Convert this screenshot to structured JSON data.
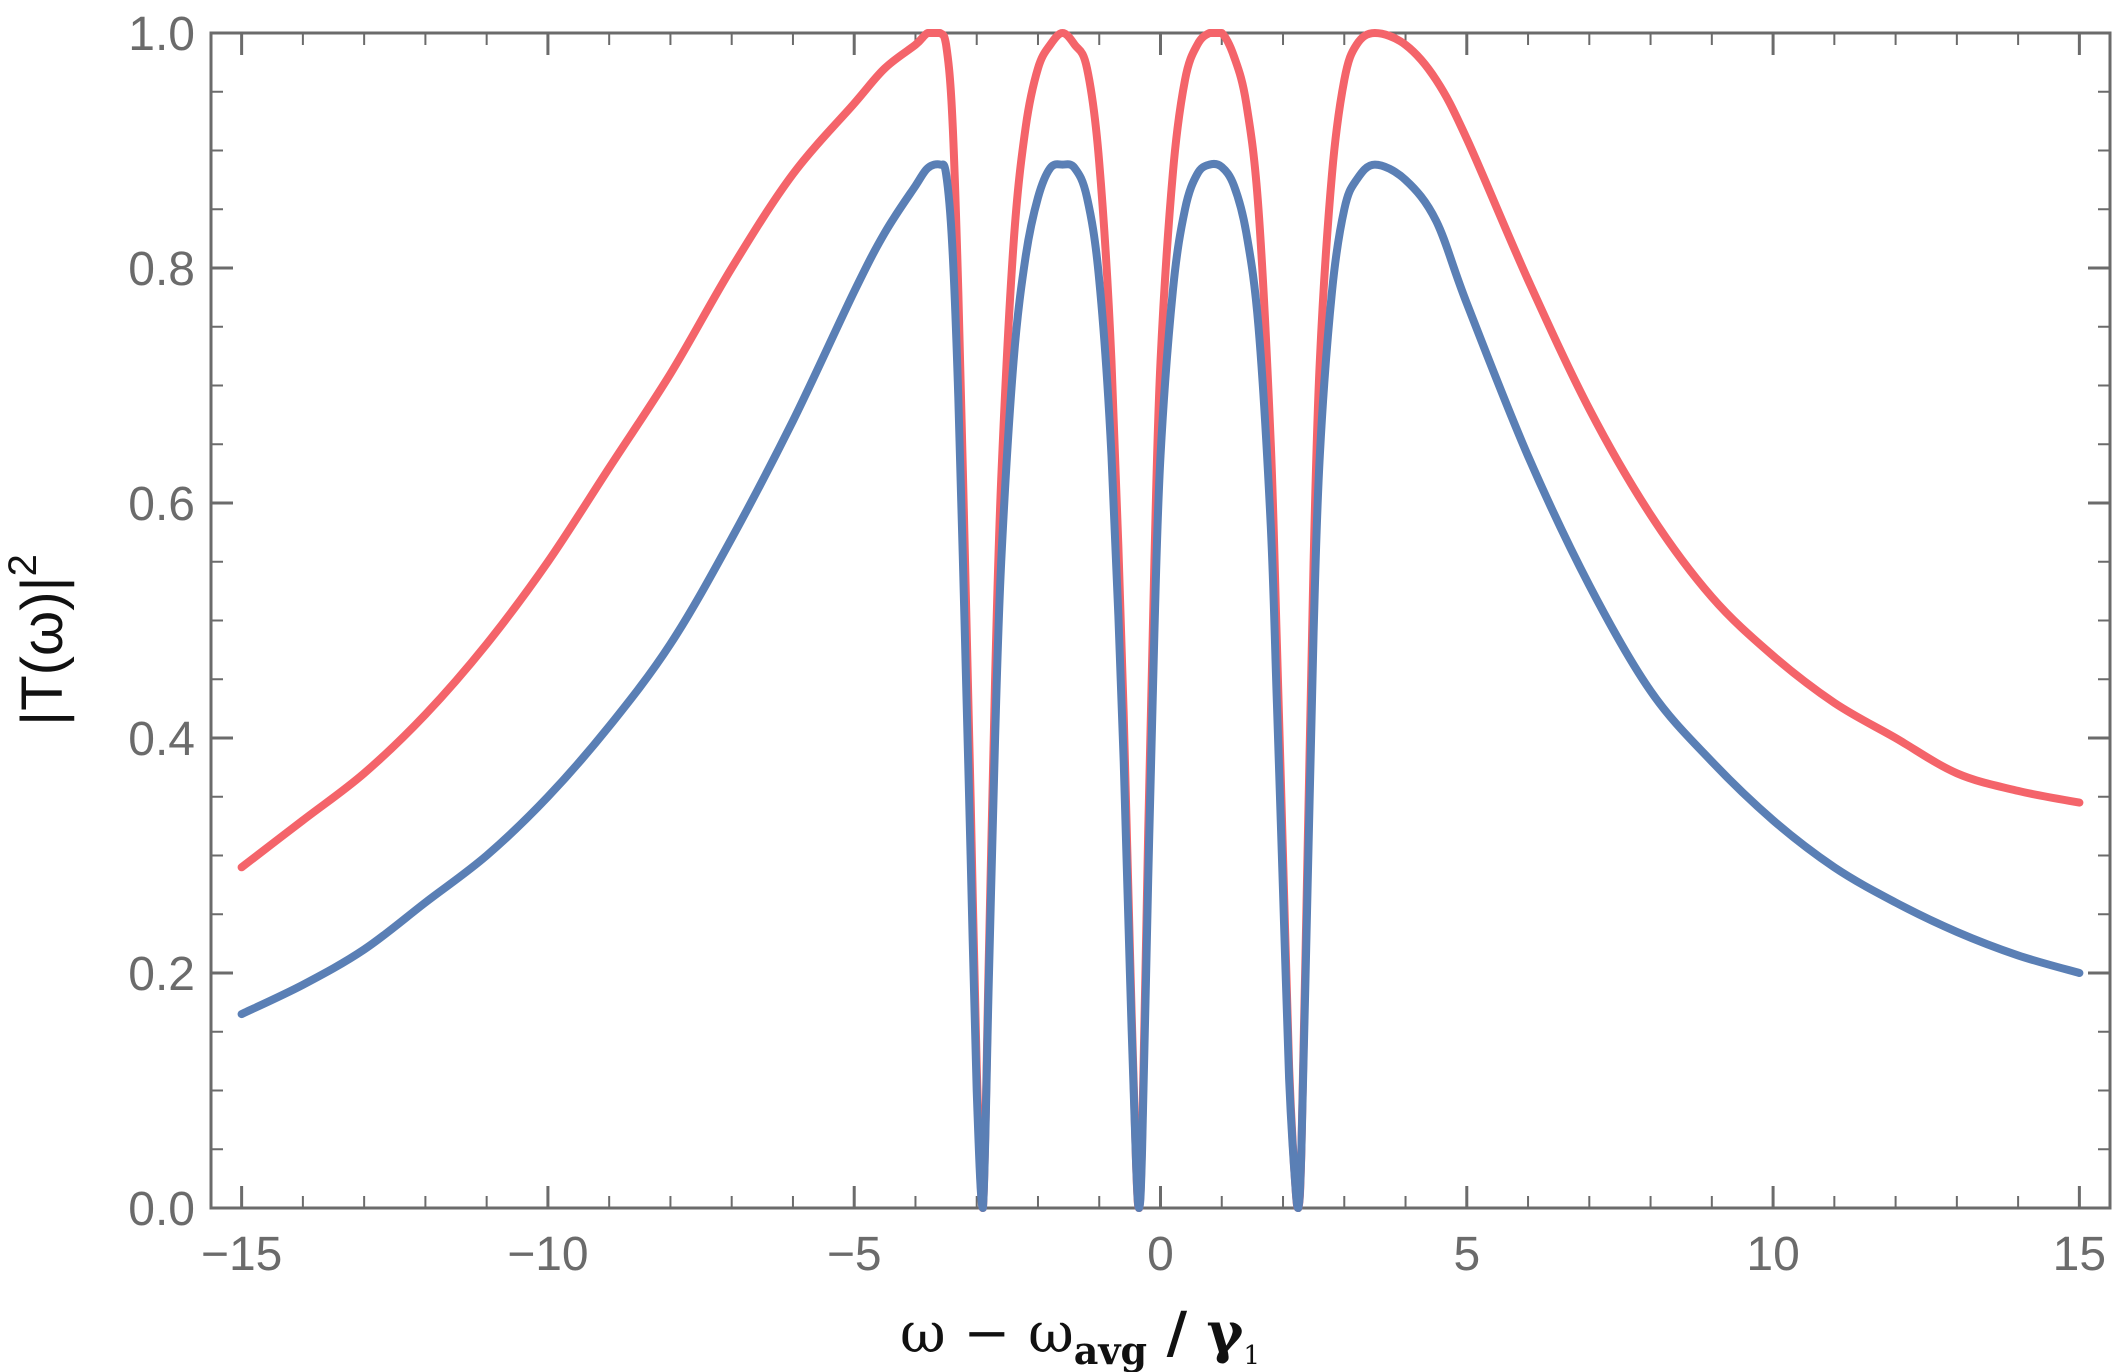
{
  "chart_data": {
    "type": "line",
    "xlabel": {
      "main": "ω − ω",
      "sub": "avg",
      "slash": " / γ",
      "slash_sub": "1"
    },
    "ylabel": {
      "main": "|T(ω)|",
      "sup": "2"
    },
    "xlim": [
      -15.5,
      15.5
    ],
    "ylim": [
      0,
      1
    ],
    "x_ticks": [
      {
        "value": -15,
        "label": "−15"
      },
      {
        "value": -10,
        "label": "−10"
      },
      {
        "value": -5,
        "label": "−5"
      },
      {
        "value": 0,
        "label": "0"
      },
      {
        "value": 5,
        "label": "5"
      },
      {
        "value": 10,
        "label": "10"
      },
      {
        "value": 15,
        "label": "15"
      }
    ],
    "y_ticks": [
      {
        "value": 0.0,
        "label": "0.0"
      },
      {
        "value": 0.2,
        "label": "0.2"
      },
      {
        "value": 0.4,
        "label": "0.4"
      },
      {
        "value": 0.6,
        "label": "0.6"
      },
      {
        "value": 0.8,
        "label": "0.8"
      },
      {
        "value": 1.0,
        "label": "1.0"
      }
    ],
    "grid": false,
    "series": [
      {
        "color": "#f4646a",
        "x": [
          -15,
          -14,
          -13,
          -12,
          -11,
          -10,
          -9,
          -8,
          -7,
          -6,
          -5,
          -4.5,
          -4,
          -3.8,
          -3.6,
          -3.5,
          -3.4,
          -3.3,
          -3.2,
          -3.1,
          -3.0,
          -2.9,
          -2.8,
          -2.7,
          -2.6,
          -2.4,
          -2.2,
          -2.0,
          -1.8,
          -1.6,
          -1.4,
          -1.2,
          -1.0,
          -0.8,
          -0.6,
          -0.5,
          -0.4,
          -0.35,
          -0.3,
          -0.2,
          -0.1,
          0.0,
          0.2,
          0.4,
          0.6,
          0.8,
          1.0,
          1.2,
          1.4,
          1.6,
          1.8,
          1.9,
          2.0,
          2.1,
          2.2,
          2.25,
          2.3,
          2.4,
          2.5,
          2.6,
          2.8,
          3.0,
          3.2,
          3.5,
          4.0,
          4.5,
          5,
          6,
          7,
          8,
          9,
          10,
          11,
          12,
          13,
          14,
          15
        ],
        "y": [
          0.29,
          0.33,
          0.37,
          0.42,
          0.48,
          0.55,
          0.63,
          0.71,
          0.8,
          0.88,
          0.94,
          0.97,
          0.99,
          1.0,
          1.0,
          0.99,
          0.93,
          0.78,
          0.57,
          0.35,
          0.12,
          0.0,
          0.22,
          0.45,
          0.62,
          0.82,
          0.92,
          0.97,
          0.99,
          1.0,
          0.99,
          0.97,
          0.89,
          0.72,
          0.42,
          0.22,
          0.04,
          0.0,
          0.06,
          0.32,
          0.55,
          0.72,
          0.88,
          0.96,
          0.99,
          1.0,
          1.0,
          0.98,
          0.94,
          0.85,
          0.65,
          0.48,
          0.3,
          0.12,
          0.02,
          0.0,
          0.05,
          0.3,
          0.55,
          0.72,
          0.88,
          0.96,
          0.99,
          1.0,
          0.99,
          0.96,
          0.91,
          0.79,
          0.68,
          0.59,
          0.52,
          0.47,
          0.43,
          0.4,
          0.37,
          0.355,
          0.345
        ]
      },
      {
        "color": "#5a7fb5",
        "x": [
          -15,
          -14,
          -13,
          -12,
          -11,
          -10,
          -9,
          -8,
          -7,
          -6,
          -5,
          -4.5,
          -4,
          -3.8,
          -3.6,
          -3.5,
          -3.4,
          -3.3,
          -3.2,
          -3.1,
          -3.0,
          -2.9,
          -2.8,
          -2.7,
          -2.6,
          -2.4,
          -2.2,
          -2.0,
          -1.8,
          -1.6,
          -1.4,
          -1.2,
          -1.0,
          -0.8,
          -0.6,
          -0.5,
          -0.4,
          -0.35,
          -0.3,
          -0.2,
          -0.1,
          0.0,
          0.2,
          0.4,
          0.6,
          0.8,
          1.0,
          1.2,
          1.4,
          1.6,
          1.8,
          1.9,
          2.0,
          2.1,
          2.2,
          2.25,
          2.3,
          2.4,
          2.5,
          2.6,
          2.8,
          3.0,
          3.2,
          3.5,
          4.0,
          4.5,
          5,
          6,
          7,
          8,
          9,
          10,
          11,
          12,
          13,
          14,
          15
        ],
        "y": [
          0.165,
          0.19,
          0.22,
          0.26,
          0.3,
          0.35,
          0.41,
          0.48,
          0.57,
          0.67,
          0.78,
          0.83,
          0.87,
          0.885,
          0.888,
          0.88,
          0.82,
          0.69,
          0.5,
          0.3,
          0.1,
          0.0,
          0.2,
          0.4,
          0.55,
          0.72,
          0.81,
          0.86,
          0.885,
          0.888,
          0.885,
          0.86,
          0.79,
          0.64,
          0.38,
          0.2,
          0.04,
          0.0,
          0.05,
          0.28,
          0.49,
          0.64,
          0.78,
          0.85,
          0.88,
          0.888,
          0.886,
          0.87,
          0.83,
          0.75,
          0.58,
          0.43,
          0.27,
          0.11,
          0.02,
          0.0,
          0.05,
          0.27,
          0.49,
          0.64,
          0.78,
          0.85,
          0.875,
          0.888,
          0.875,
          0.84,
          0.77,
          0.64,
          0.53,
          0.44,
          0.38,
          0.33,
          0.29,
          0.26,
          0.235,
          0.215,
          0.2
        ]
      }
    ]
  }
}
